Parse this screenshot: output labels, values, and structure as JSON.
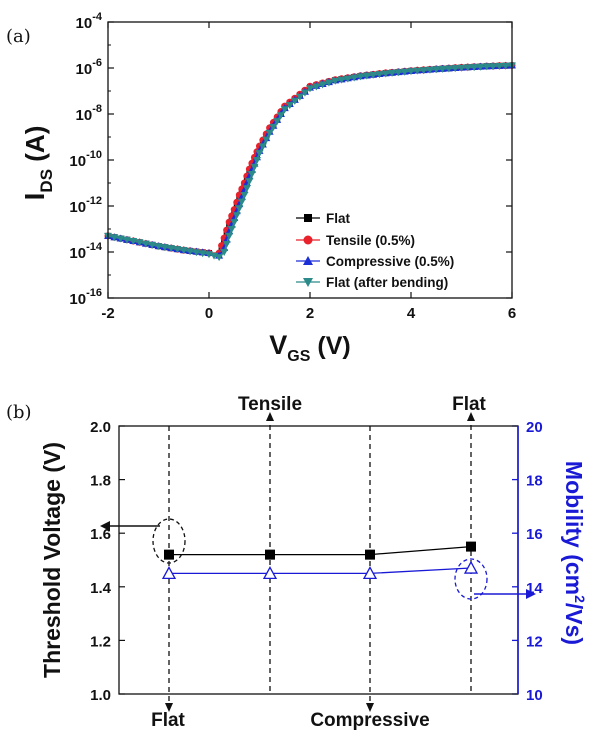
{
  "chart_data": [
    {
      "type": "line",
      "panel_label": "(a)",
      "xlabel_main": "V",
      "xlabel_sub": "GS",
      "xlabel_unit": " (V)",
      "ylabel_main": "I",
      "ylabel_sub": "DS",
      "ylabel_unit": " (A)",
      "xlim": [
        -2,
        6
      ],
      "ylim_log10": [
        -16,
        -4
      ],
      "y_scale": "log",
      "x_ticks": [
        "-2",
        "0",
        "2",
        "4",
        "6"
      ],
      "y_tick_exponents": [
        "-4",
        "-6",
        "-8",
        "-10",
        "-12",
        "-14",
        "-16"
      ],
      "legend_placement": "lower-right",
      "series": [
        {
          "name": "Flat",
          "marker": "square",
          "color": "#000000",
          "x": [
            -2,
            -1.5,
            -1,
            -0.5,
            0,
            0.2,
            0.3,
            0.4,
            0.5,
            0.6,
            0.7,
            0.8,
            0.9,
            1.0,
            1.2,
            1.5,
            2,
            2.5,
            3,
            3.5,
            4,
            4.5,
            5,
            5.5,
            6
          ],
          "y": [
            5e-14,
            3e-14,
            1.8e-14,
            1.2e-14,
            9e-15,
            8e-15,
            3e-14,
            1.5e-13,
            5e-13,
            2e-12,
            8e-12,
            3e-11,
            1e-10,
            3e-10,
            2e-09,
            2e-08,
            1.5e-07,
            3e-07,
            4.5e-07,
            6e-07,
            7.5e-07,
            9e-07,
            1.05e-06,
            1.2e-06,
            1.3e-06
          ]
        },
        {
          "name": "Tensile (0.5%)",
          "marker": "circle",
          "color": "#e8212b",
          "x": [
            -2,
            -1.5,
            -1,
            -0.5,
            0,
            0.2,
            0.3,
            0.4,
            0.5,
            0.6,
            0.7,
            0.8,
            0.9,
            1.0,
            1.2,
            1.5,
            2,
            2.5,
            3,
            3.5,
            4,
            4.5,
            5,
            5.5,
            6
          ],
          "y": [
            5e-14,
            3e-14,
            1.8e-14,
            1.2e-14,
            9e-15,
            9e-15,
            4e-14,
            2e-13,
            7e-13,
            3e-12,
            1e-11,
            4e-11,
            1.3e-10,
            4e-10,
            2.5e-09,
            2.2e-08,
            1.6e-07,
            3.1e-07,
            4.6e-07,
            6.1e-07,
            7.6e-07,
            9.1e-07,
            1.06e-06,
            1.2e-06,
            1.3e-06
          ]
        },
        {
          "name": "Compressive (0.5%)",
          "marker": "triangle-up",
          "color": "#1c2fd6",
          "x": [
            -2,
            -1.5,
            -1,
            -0.5,
            0,
            0.2,
            0.3,
            0.4,
            0.5,
            0.6,
            0.7,
            0.8,
            0.9,
            1.0,
            1.2,
            1.5,
            2,
            2.5,
            3,
            3.5,
            4,
            4.5,
            5,
            5.5,
            6
          ],
          "y": [
            5e-14,
            3e-14,
            1.8e-14,
            1.2e-14,
            9e-15,
            7e-15,
            1.5e-14,
            8e-14,
            3e-13,
            1.2e-12,
            5e-12,
            2e-11,
            7e-11,
            2.5e-10,
            1.7e-09,
            1.8e-08,
            1.4e-07,
            2.9e-07,
            4.4e-07,
            5.9e-07,
            7.4e-07,
            8.9e-07,
            1.04e-06,
            1.18e-06,
            1.3e-06
          ]
        },
        {
          "name": "Flat (after bending)",
          "marker": "triangle-down",
          "color": "#2b8a8a",
          "x": [
            -2,
            -1.5,
            -1,
            -0.5,
            0,
            0.2,
            0.3,
            0.4,
            0.5,
            0.6,
            0.7,
            0.8,
            0.9,
            1.0,
            1.2,
            1.5,
            2,
            2.5,
            3,
            3.5,
            4,
            4.5,
            5,
            5.5,
            6
          ],
          "y": [
            5e-14,
            3e-14,
            1.8e-14,
            1.2e-14,
            8e-15,
            6e-15,
            1e-14,
            5e-14,
            2e-13,
            8e-13,
            3e-12,
            1.2e-11,
            5e-11,
            2e-10,
            1.5e-09,
            1.6e-08,
            1.3e-07,
            2.8e-07,
            4.3e-07,
            5.8e-07,
            7.3e-07,
            8.8e-07,
            1.03e-06,
            1.17e-06,
            1.28e-06
          ]
        }
      ]
    },
    {
      "type": "line",
      "panel_label": "(b)",
      "ylabel": "Threshold Voltage (V)",
      "ylabel_right_main": "Mobility (cm",
      "ylabel_right_sup": "2",
      "ylabel_right_end": "/Vs)",
      "right_axis_color": "#1a1ad6",
      "ylim": [
        1.0,
        2.0
      ],
      "ylim_right": [
        10,
        20
      ],
      "y_ticks": [
        "1.0",
        "1.2",
        "1.4",
        "1.6",
        "1.8",
        "2.0"
      ],
      "y_ticks_right": [
        "10",
        "12",
        "14",
        "16",
        "18",
        "20"
      ],
      "conditions_top": [
        "Tensile",
        "Flat"
      ],
      "conditions_bottom": [
        "Flat",
        "Compressive"
      ],
      "series": [
        {
          "axis": "left",
          "marker": "square-filled",
          "color": "#000000",
          "values": [
            1.52,
            1.52,
            1.52,
            1.55
          ]
        },
        {
          "axis": "right",
          "marker": "triangle-open",
          "color": "#1a1ad6",
          "values": [
            14.5,
            14.5,
            14.5,
            14.7
          ]
        }
      ]
    }
  ]
}
